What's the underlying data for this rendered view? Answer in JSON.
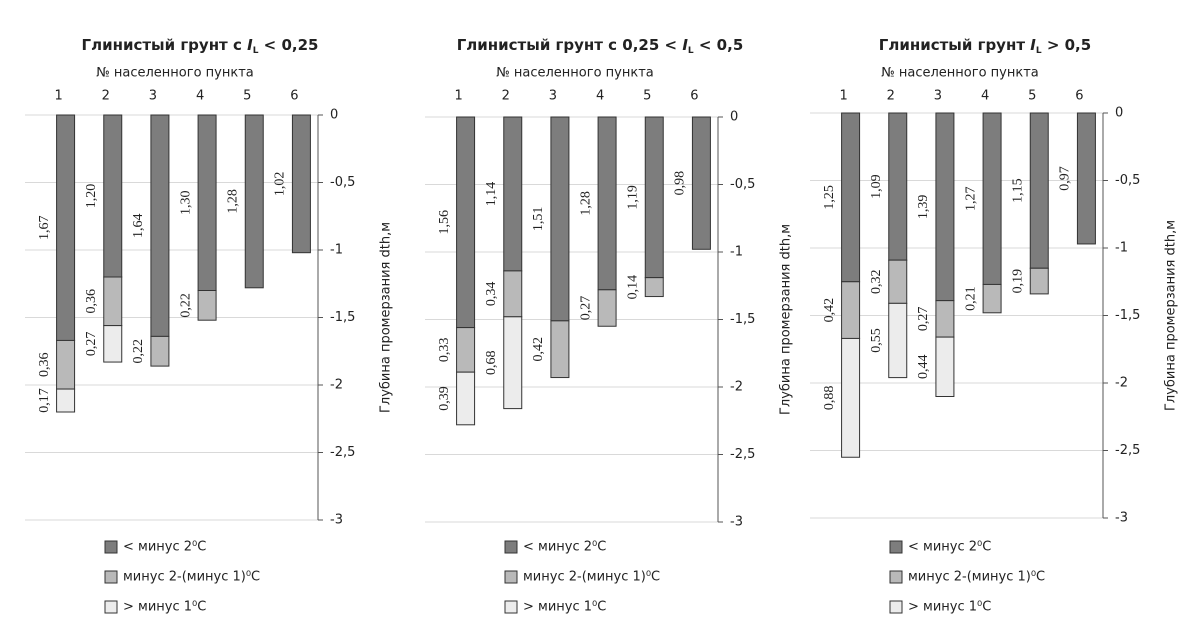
{
  "chart_data": [
    {
      "type": "bar",
      "stacked": true,
      "title": [
        "Глинистый грунт с ",
        "I",
        "L",
        " < 0,25"
      ],
      "x_label": "№ населенного пункта",
      "y_label": "Глубина промерзания dth,м",
      "categories": [
        "1",
        "2",
        "3",
        "4",
        "5",
        "6"
      ],
      "ylim": [
        -3,
        0
      ],
      "yticks": [
        0,
        {
          "value": -0.5,
          "label": "-0,5"
        },
        -1,
        {
          "value": -1.5,
          "label": "-1,5"
        },
        -2,
        {
          "value": -2.5,
          "label": "-2,5"
        },
        -3
      ],
      "grid": true,
      "series": [
        {
          "name": "< минус 2⁰C",
          "color": "#7d7d7d",
          "values": [
            -1.67,
            -1.2,
            -1.64,
            -1.3,
            -1.28,
            -1.02
          ],
          "value_labels": [
            "1,67",
            "1,20",
            "1,64",
            "1,30",
            "1,28",
            "1,02"
          ]
        },
        {
          "name": "минус 2-(минус 1)⁰C",
          "color": "#b9b9b9",
          "values": [
            -0.36,
            -0.36,
            -0.22,
            -0.22,
            null,
            null
          ],
          "value_labels": [
            "0,36",
            "0,36",
            "0,22",
            "0,22",
            null,
            null
          ]
        },
        {
          "name": "> минус 1⁰C",
          "color": "#ececec",
          "values": [
            -0.17,
            -0.27,
            null,
            null,
            null,
            null
          ],
          "value_labels": [
            "0,17",
            "0,27",
            null,
            null,
            null,
            null
          ]
        }
      ]
    },
    {
      "type": "bar",
      "stacked": true,
      "title": [
        "Глинистый грунт с 0,25 < ",
        "I",
        "L",
        " < 0,5"
      ],
      "x_label": "№ населенного пункта",
      "y_label": "Глубина промерзания dth,м",
      "categories": [
        "1",
        "2",
        "3",
        "4",
        "5",
        "6"
      ],
      "ylim": [
        -3,
        0
      ],
      "yticks": [
        0,
        {
          "value": -0.5,
          "label": "-0,5"
        },
        -1,
        {
          "value": -1.5,
          "label": "-1,5"
        },
        -2,
        {
          "value": -2.5,
          "label": "-2,5"
        },
        -3
      ],
      "grid": true,
      "series": [
        {
          "name": "< минус 2⁰C",
          "color": "#7d7d7d",
          "values": [
            -1.56,
            -1.14,
            -1.51,
            -1.28,
            -1.19,
            -0.98
          ],
          "value_labels": [
            "1,56",
            "1,14",
            "1,51",
            "1,28",
            "1,19",
            "0,98"
          ]
        },
        {
          "name": "минус 2-(минус 1)⁰C",
          "color": "#b9b9b9",
          "values": [
            -0.33,
            -0.34,
            -0.42,
            -0.27,
            -0.14,
            null
          ],
          "value_labels": [
            "0,33",
            "0,34",
            "0,42",
            "0,27",
            "0,14",
            null
          ]
        },
        {
          "name": "> минус 1⁰C",
          "color": "#ececec",
          "values": [
            -0.39,
            -0.68,
            null,
            null,
            null,
            null
          ],
          "value_labels": [
            "0,39",
            "0,68",
            null,
            null,
            null,
            null
          ]
        }
      ]
    },
    {
      "type": "bar",
      "stacked": true,
      "title": [
        "Глинистый грунт ",
        "I",
        "L",
        " > 0,5"
      ],
      "x_label": "№ населенного пункта",
      "y_label": "Глубина промерзания dth,м",
      "categories": [
        "1",
        "2",
        "3",
        "4",
        "5",
        "6"
      ],
      "ylim": [
        -3,
        0
      ],
      "yticks": [
        0,
        {
          "value": -0.5,
          "label": "-0,5"
        },
        -1,
        {
          "value": -1.5,
          "label": "-1,5"
        },
        -2,
        {
          "value": -2.5,
          "label": "-2,5"
        },
        -3
      ],
      "grid": true,
      "series": [
        {
          "name": "< минус 2⁰C",
          "color": "#7d7d7d",
          "values": [
            -1.25,
            -1.09,
            -1.39,
            -1.27,
            -1.15,
            -0.97
          ],
          "value_labels": [
            "1,25",
            "1,09",
            "1,39",
            "1,27",
            "1,15",
            "0,97"
          ]
        },
        {
          "name": "минус 2-(минус 1)⁰C",
          "color": "#b9b9b9",
          "values": [
            -0.42,
            -0.32,
            -0.27,
            -0.21,
            -0.19,
            null
          ],
          "value_labels": [
            "0,42",
            "0,32",
            "0,27",
            "0,21",
            "0,19",
            null
          ]
        },
        {
          "name": "> минус 1⁰C",
          "color": "#ececec",
          "values": [
            -0.88,
            -0.55,
            -0.44,
            null,
            null,
            null
          ],
          "value_labels": [
            "0,88",
            "0,55",
            "0,44",
            null,
            null,
            null
          ]
        }
      ]
    }
  ]
}
